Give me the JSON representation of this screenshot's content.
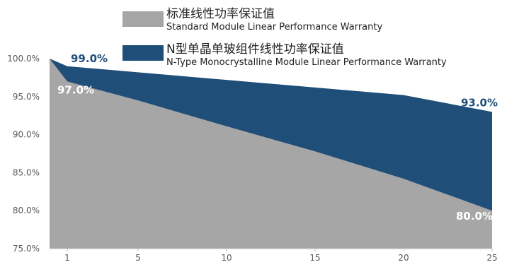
{
  "chart_data": {
    "type": "area",
    "x": [
      0,
      1,
      5,
      10,
      15,
      20,
      25
    ],
    "xticks": [
      1,
      5,
      10,
      15,
      20,
      25
    ],
    "xlim": [
      0,
      25
    ],
    "ylim": [
      75,
      100
    ],
    "yticks": [
      75,
      80,
      85,
      90,
      95,
      100
    ],
    "ytick_labels": [
      "75.0%",
      "80.0%",
      "85.0%",
      "90.0%",
      "95.0%",
      "100.0%"
    ],
    "grid": false,
    "legend_placement": "top",
    "series": [
      {
        "name_cn": "N型单晶单玻组件线性功率保证值",
        "name_en": "N-Type Monocrystalline Module Linear Performance Warranty",
        "values": [
          100,
          99,
          98.2,
          97.2,
          96.2,
          95.2,
          93.0
        ],
        "color": "#1f4e79"
      },
      {
        "name_cn": "标准线性功率保证值",
        "name_en": "Standard  Module Linear Performance Warranty",
        "values": [
          100,
          97,
          94.5,
          91.1,
          87.8,
          84.2,
          80.0
        ],
        "color": "#a6a6a6"
      }
    ],
    "annotations": [
      {
        "text": "99.0%",
        "x": 1,
        "y": 99.0,
        "color": "#1f4e79",
        "anchor": "start",
        "dx": 5,
        "dy": -6
      },
      {
        "text": "97.0%",
        "x": 1,
        "y": 97.0,
        "color": "#ffffff",
        "anchor": "start",
        "dx": -14,
        "dy": 17
      },
      {
        "text": "93.0%",
        "x": 25,
        "y": 93.0,
        "color": "#1f4e79",
        "anchor": "end",
        "dx": 8,
        "dy": -8
      },
      {
        "text": "80.0%",
        "x": 25,
        "y": 80.0,
        "color": "#ffffff",
        "anchor": "end",
        "dx": 1,
        "dy": 13
      }
    ]
  }
}
